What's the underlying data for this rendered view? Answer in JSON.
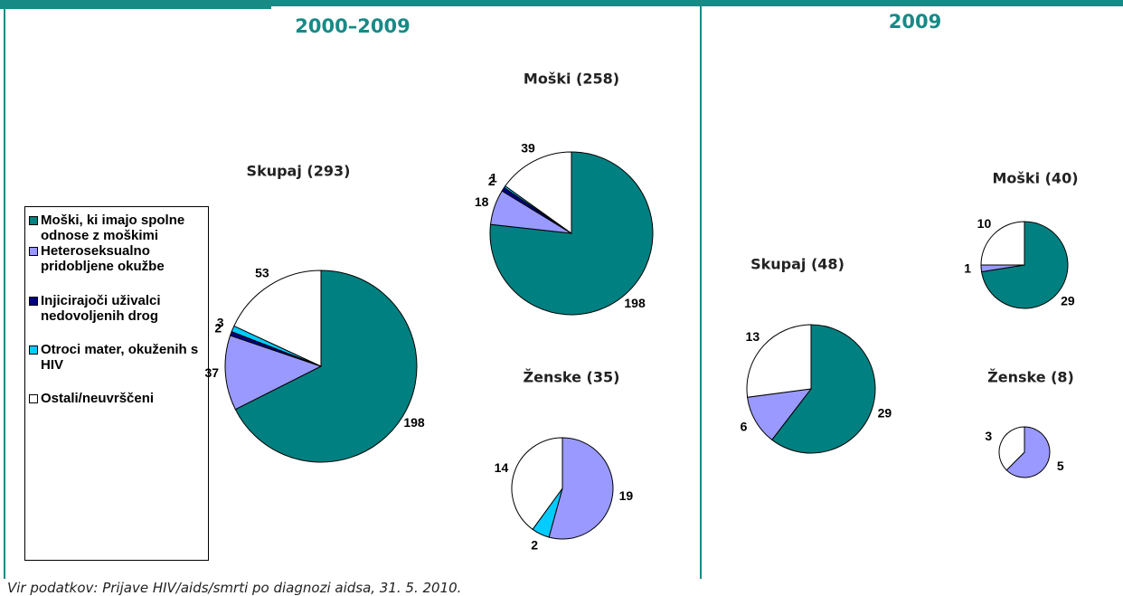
{
  "sections": [
    "2000–2009",
    "2009"
  ],
  "legend": {
    "categories": [
      "Moški, ki imajo spolne odnose z moškimi",
      "Heteroseksualno pridobljene okužbe",
      "Injicirajoči uživalci nedovoljenih drog",
      "Otroci mater, okuženih s HIV",
      "Ostali/neuvrščeni"
    ],
    "colors": [
      "#008080",
      "#9999ff",
      "#000080",
      "#00ccff",
      "#ffffff"
    ]
  },
  "chart_data": [
    {
      "type": "pie",
      "title": "Skupaj (293)",
      "values": [
        198,
        37,
        2,
        3,
        53
      ]
    },
    {
      "type": "pie",
      "title": "Moški (258)",
      "values": [
        198,
        18,
        2,
        1,
        39
      ]
    },
    {
      "type": "pie",
      "title": "Ženske (35)",
      "values": [
        null,
        19,
        null,
        2,
        14
      ]
    },
    {
      "type": "pie",
      "title": "Skupaj (48)",
      "values": [
        29,
        6,
        null,
        null,
        13
      ]
    },
    {
      "type": "pie",
      "title": "Moški (40)",
      "values": [
        29,
        1,
        null,
        null,
        10
      ]
    },
    {
      "type": "pie",
      "title": "Ženske (8)",
      "values": [
        null,
        5,
        null,
        null,
        3
      ]
    }
  ],
  "source": "Vir podatkov: Prijave HIV/aids/smrti po diagnozi aidsa, 31. 5. 2010."
}
